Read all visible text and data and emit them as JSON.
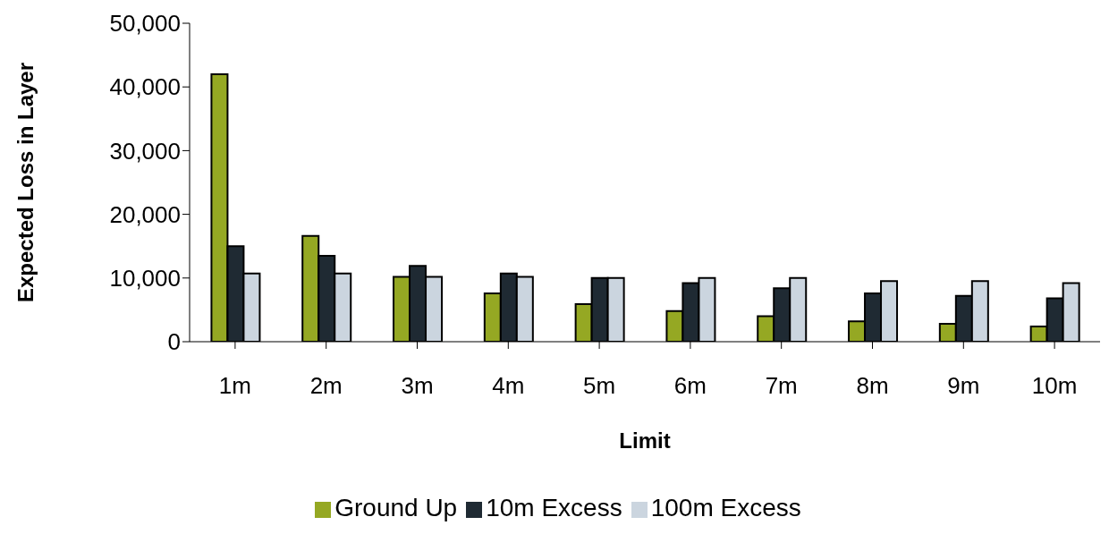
{
  "chart_data": {
    "type": "bar",
    "xlabel": "Limit",
    "ylabel": "Expected Loss in Layer",
    "categories": [
      "1m",
      "2m",
      "3m",
      "4m",
      "5m",
      "6m",
      "7m",
      "8m",
      "9m",
      "10m"
    ],
    "series": [
      {
        "name": "Ground Up",
        "color": "#95a823",
        "values": [
          42000,
          16600,
          10200,
          7600,
          5900,
          4800,
          4000,
          3200,
          2800,
          2400
        ]
      },
      {
        "name": "10m Excess",
        "color": "#1f2a33",
        "values": [
          15000,
          13500,
          11900,
          10700,
          10000,
          9200,
          8400,
          7600,
          7200,
          6800
        ]
      },
      {
        "name": "100m Excess",
        "color": "#cbd5df",
        "values": [
          10700,
          10700,
          10200,
          10200,
          10000,
          10000,
          10000,
          9500,
          9500,
          9200
        ]
      }
    ],
    "ylim": [
      0,
      50000
    ],
    "yticks": [
      0,
      {
        "value": 10000,
        "label": "10,000"
      },
      {
        "value": 20000,
        "label": "20,000"
      },
      {
        "value": 30000,
        "label": "30,000"
      },
      {
        "value": 40000,
        "label": "40,000"
      },
      {
        "value": 50000,
        "label": "50,000"
      }
    ],
    "grid": false,
    "legend": "bottom"
  }
}
